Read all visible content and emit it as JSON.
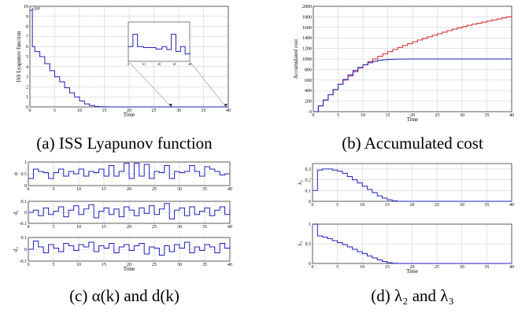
{
  "captions": {
    "a": "(a) ISS Lyapunov function",
    "b": "(b) Accumulated cost",
    "c": "(c) α(k) and d(k)",
    "d": "(d) λ₂ and λ₃"
  },
  "chart_data": [
    {
      "id": "a",
      "type": "line",
      "xlabel": "Time",
      "ylabel": "ISS Lyapunov function",
      "exponent_label": "x10⁴",
      "xlim": [
        0,
        40
      ],
      "ylim": [
        0,
        10
      ],
      "xticks": [
        0,
        5,
        10,
        15,
        20,
        25,
        30,
        35,
        40
      ],
      "yticks": [
        0,
        1,
        2,
        3,
        4,
        5,
        6,
        7,
        8,
        9,
        10
      ],
      "color": "#1f1fbf",
      "series": [
        {
          "x": [
            0,
            0.5,
            1,
            2,
            3,
            4,
            5,
            6,
            7,
            8,
            9,
            10,
            11,
            12,
            13,
            14,
            15,
            16,
            40
          ],
          "y": [
            9.6,
            6.0,
            5.5,
            5.0,
            4.3,
            3.6,
            3.0,
            2.5,
            1.9,
            1.4,
            1.0,
            0.6,
            0.3,
            0.15,
            0.05,
            0.02,
            0.01,
            0,
            0
          ]
        }
      ],
      "inset": {
        "xticks": [
          0,
          10,
          20,
          30,
          40
        ],
        "ylim": [
          0,
          0.8
        ],
        "x": [
          0,
          3,
          6,
          10,
          14,
          18,
          22,
          25,
          28,
          31,
          34,
          37,
          40
        ],
        "y": [
          0.3,
          0.55,
          0.3,
          0.28,
          0.28,
          0.25,
          0.3,
          0.24,
          0.55,
          0.2,
          0.3,
          0.15,
          0.18
        ]
      }
    },
    {
      "id": "b",
      "type": "line",
      "xlabel": "Time",
      "ylabel": "Accumulated cost",
      "xlim": [
        0,
        40
      ],
      "ylim": [
        0,
        2000
      ],
      "xticks": [
        0,
        5,
        10,
        15,
        20,
        25,
        30,
        35,
        40
      ],
      "yticks": [
        0,
        200,
        400,
        600,
        800,
        1000,
        1200,
        1400,
        1600,
        1800,
        2000
      ],
      "series": [
        {
          "color": "#d62020",
          "values_from": "red"
        },
        {
          "color": "#1f1fbf",
          "values_from": "blue"
        }
      ],
      "red": {
        "x": [
          0,
          1,
          2,
          3,
          4,
          5,
          6,
          7,
          8,
          9,
          10,
          11,
          12,
          13,
          14,
          15,
          16,
          17,
          18,
          19,
          20,
          21,
          22,
          23,
          24,
          25,
          26,
          27,
          28,
          29,
          30,
          31,
          32,
          33,
          34,
          35,
          36,
          37,
          38,
          39,
          40
        ],
        "y": [
          0,
          110,
          220,
          320,
          420,
          520,
          600,
          680,
          760,
          830,
          890,
          950,
          1000,
          1050,
          1095,
          1140,
          1180,
          1220,
          1255,
          1290,
          1325,
          1360,
          1390,
          1420,
          1450,
          1480,
          1510,
          1540,
          1565,
          1590,
          1615,
          1640,
          1660,
          1680,
          1700,
          1720,
          1740,
          1760,
          1780,
          1800,
          1820
        ]
      },
      "blue": {
        "x": [
          0,
          1,
          2,
          3,
          4,
          5,
          6,
          7,
          8,
          9,
          10,
          11,
          12,
          13,
          14,
          15,
          16,
          17,
          18,
          19,
          20,
          25,
          30,
          35,
          40
        ],
        "y": [
          0,
          110,
          220,
          320,
          420,
          520,
          610,
          700,
          780,
          840,
          890,
          930,
          955,
          975,
          985,
          992,
          996,
          998,
          999,
          1000,
          1000,
          1000,
          1000,
          1000,
          1000
        ]
      }
    },
    {
      "id": "c",
      "type": "line",
      "xlabel": "Time",
      "xlim": [
        0,
        40
      ],
      "xticks": [
        0,
        5,
        10,
        15,
        20,
        25,
        30,
        35,
        40
      ],
      "color": "#1f1fbf",
      "panels": [
        {
          "ylabel": "α",
          "ylim": [
            0,
            1
          ],
          "yticks": [
            0,
            0.5,
            1
          ],
          "y": [
            0.3,
            0.7,
            0.6,
            0.55,
            0.3,
            0.55,
            0.7,
            0.4,
            0.6,
            0.5,
            0.7,
            0.4,
            0.6,
            0.55,
            0.7,
            0.4,
            0.85,
            0.4,
            0.6,
            0.95,
            0.3,
            0.95,
            0.4,
            0.9,
            0.3,
            0.6,
            0.55,
            0.85,
            0.3,
            0.6,
            0.55,
            0.6,
            0.85,
            0.6,
            0.4,
            0.8,
            0.7,
            0.6,
            0.45,
            0.5,
            0.5
          ]
        },
        {
          "ylabel": "d₁",
          "ylim": [
            -0.1,
            0.1
          ],
          "yticks": [
            -0.1,
            0,
            0.1
          ],
          "y": [
            0,
            0.02,
            -0.03,
            0.04,
            -0.02,
            0.01,
            0.05,
            -0.04,
            0.02,
            0.06,
            -0.02,
            0.03,
            0.07,
            -0.05,
            0.01,
            0.04,
            -0.02,
            0.03,
            -0.04,
            0.05,
            0.02,
            -0.03,
            0.04,
            -0.01,
            0.06,
            -0.02,
            0.03,
            0.08,
            -0.06,
            0.02,
            0.04,
            -0.03,
            0.05,
            -0.02,
            0.01,
            0.04,
            -0.03,
            0.02,
            0.05,
            -0.02,
            0.03
          ]
        },
        {
          "ylabel": "d₂",
          "ylim": [
            -0.1,
            0.1
          ],
          "yticks": [
            -0.1,
            0,
            0.1
          ],
          "y": [
            0,
            0.07,
            0.02,
            -0.03,
            0.04,
            0.01,
            -0.02,
            0.05,
            0.03,
            -0.01,
            0.04,
            0.02,
            0.06,
            -0.02,
            0.03,
            0.01,
            0.05,
            -0.03,
            0.02,
            0.04,
            -0.01,
            0.03,
            0.05,
            -0.04,
            0.02,
            0.01,
            -0.05,
            0.03,
            -0.02,
            0.04,
            0.01,
            0.06,
            -0.03,
            0.02,
            -0.01,
            0.04,
            0.02,
            -0.03,
            0.05,
            0.01,
            0.03
          ]
        }
      ]
    },
    {
      "id": "d",
      "type": "line",
      "xlabel": "Time",
      "xlim": [
        0,
        40
      ],
      "xticks": [
        0,
        5,
        10,
        15,
        20,
        25,
        30,
        35,
        40
      ],
      "color": "#1f1fbf",
      "panels": [
        {
          "ylabel": "λ₂",
          "ylim": [
            0,
            0.35
          ],
          "yticks": [
            0,
            0.1,
            0.2,
            0.3
          ],
          "x": [
            0,
            1,
            2,
            3,
            4,
            5,
            6,
            7,
            8,
            9,
            10,
            11,
            12,
            13,
            14,
            15,
            16,
            17,
            40
          ],
          "y": [
            0.1,
            0.29,
            0.3,
            0.3,
            0.29,
            0.28,
            0.26,
            0.23,
            0.2,
            0.17,
            0.14,
            0.11,
            0.08,
            0.05,
            0.03,
            0.015,
            0.005,
            0,
            0
          ]
        },
        {
          "ylabel": "λ₃",
          "ylim": [
            0,
            1
          ],
          "yticks": [
            0,
            0.5,
            1
          ],
          "x": [
            0,
            1,
            2,
            3,
            4,
            5,
            6,
            7,
            8,
            9,
            10,
            11,
            12,
            13,
            14,
            15,
            16,
            17,
            40
          ],
          "y": [
            1,
            0.7,
            0.67,
            0.63,
            0.58,
            0.53,
            0.48,
            0.42,
            0.36,
            0.3,
            0.25,
            0.19,
            0.14,
            0.09,
            0.05,
            0.02,
            0.005,
            0,
            0
          ]
        }
      ]
    }
  ]
}
